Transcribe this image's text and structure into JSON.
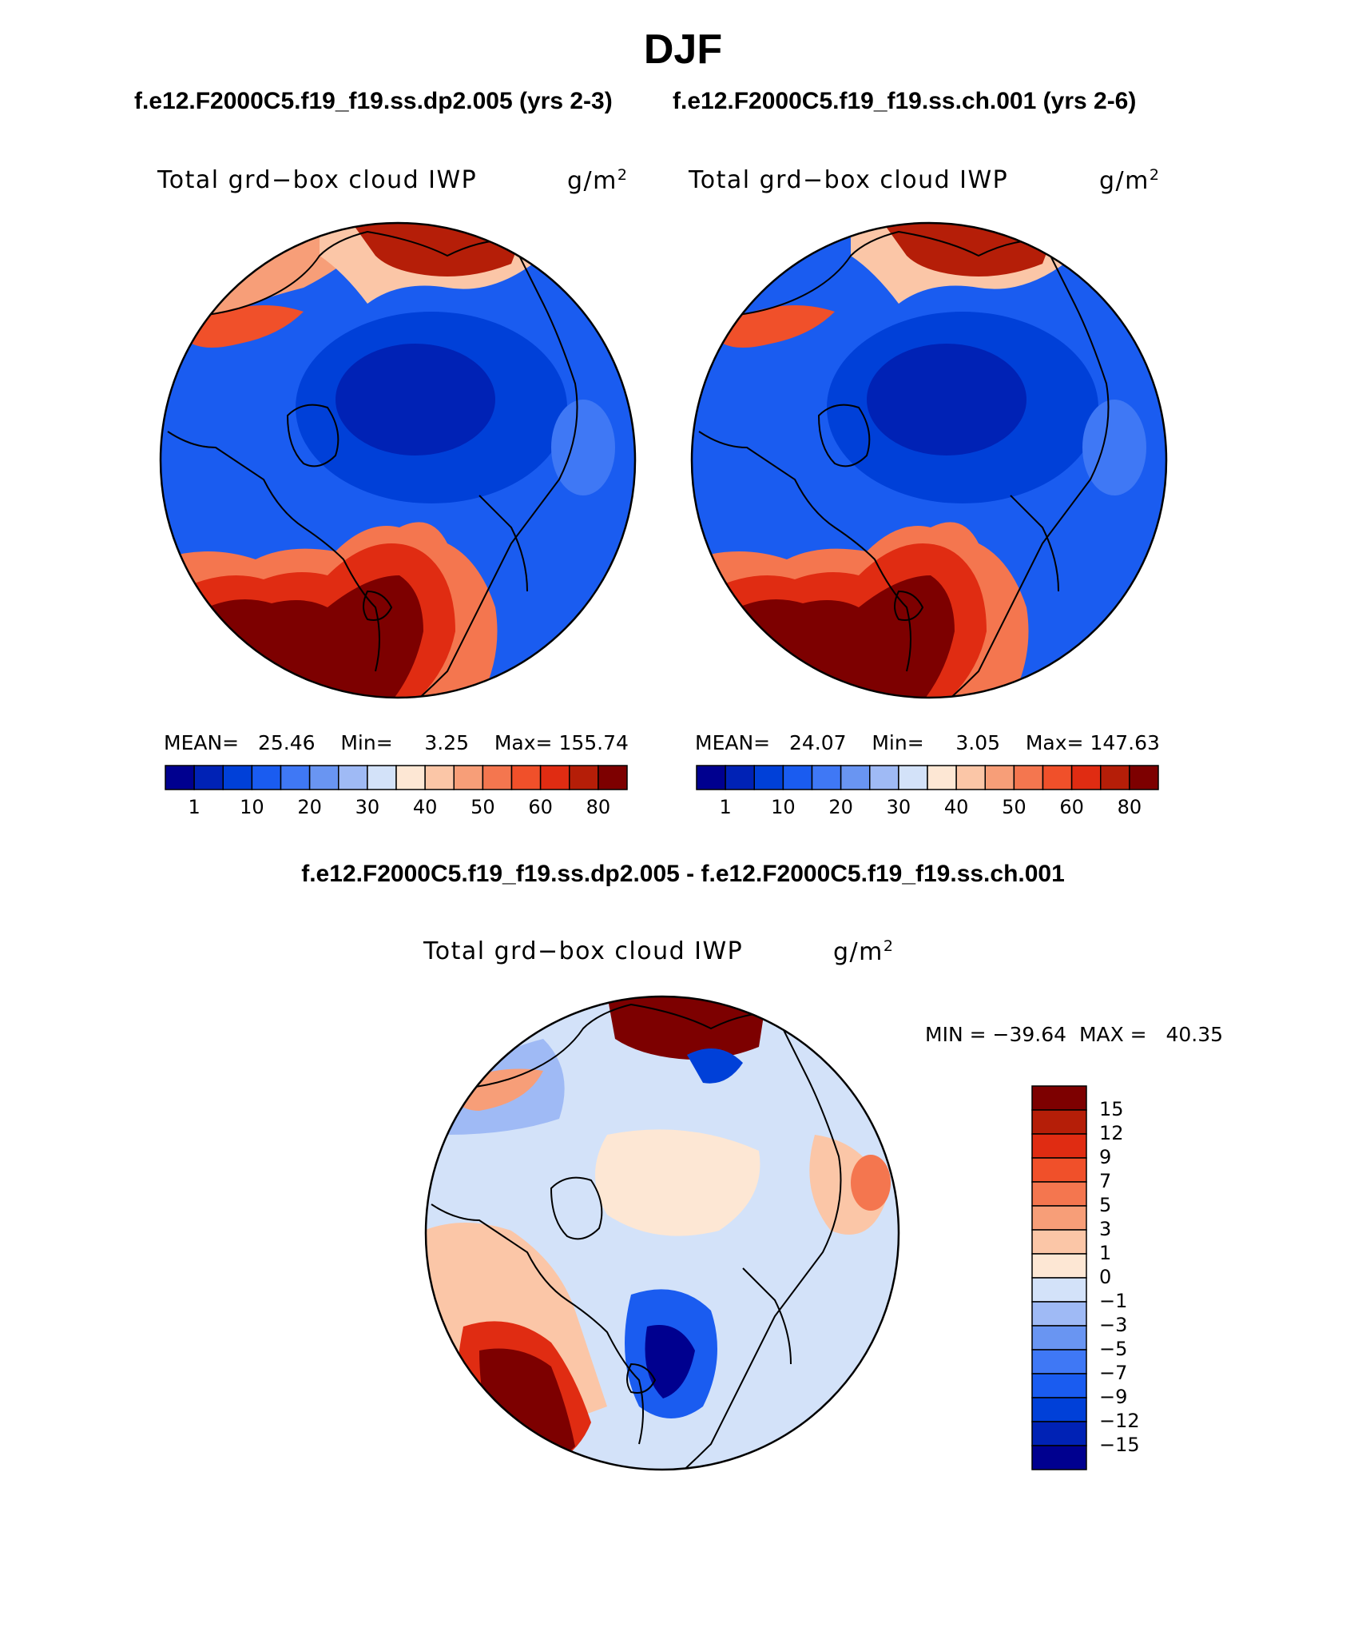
{
  "page": {
    "title": "DJF",
    "case1_label": "f.e12.F2000C5.f19_f19.ss.dp2.005 (yrs 2-3)",
    "case2_label": "f.e12.F2000C5.f19_f19.ss.ch.001 (yrs 2-6)",
    "diff_title": "f.e12.F2000C5.f19_f19.ss.dp2.005 - f.e12.F2000C5.f19_f19.ss.ch.001"
  },
  "panels": [
    {
      "variable": "Total grd−box cloud IWP",
      "units_base": "g/m",
      "units_exp": "2",
      "mean_label": "MEAN=",
      "mean_value": "25.46",
      "min_label": "Min=",
      "min_value": "3.25",
      "max_label": "Max=",
      "max_value": "155.74"
    },
    {
      "variable": "Total grd−box cloud IWP",
      "units_base": "g/m",
      "units_exp": "2",
      "mean_label": "MEAN=",
      "mean_value": "24.07",
      "min_label": "Min=",
      "min_value": "3.05",
      "max_label": "Max=",
      "max_value": "147.63"
    }
  ],
  "diff_panel": {
    "variable": "Total grd−box cloud IWP",
    "units_base": "g/m",
    "units_exp": "2",
    "min_label": "MIN =",
    "min_value": "−39.64",
    "max_label": "MAX =",
    "max_value": "40.35"
  },
  "colorbar_main": {
    "tick_labels": [
      "1",
      "10",
      "20",
      "30",
      "40",
      "50",
      "60",
      "80"
    ],
    "colors": [
      "#00008f",
      "#0022b5",
      "#0040d8",
      "#1a5cf0",
      "#3f78f5",
      "#6995f2",
      "#9fbaf5",
      "#d3e2f9",
      "#fde7d4",
      "#fbc6a7",
      "#f79e78",
      "#f4764f",
      "#f0502a",
      "#e02c12",
      "#b51e08",
      "#7d0000"
    ]
  },
  "colorbar_diff": {
    "tick_labels": [
      "15",
      "12",
      "9",
      "7",
      "5",
      "3",
      "1",
      "0",
      "−1",
      "−3",
      "−5",
      "−7",
      "−9",
      "−12",
      "−15"
    ],
    "colors": [
      "#7d0000",
      "#b51e08",
      "#e02c12",
      "#f0502a",
      "#f4764f",
      "#f79e78",
      "#fbc6a7",
      "#fde7d4",
      "#d3e2f9",
      "#9fbaf5",
      "#6995f2",
      "#3f78f5",
      "#1a5cf0",
      "#0040d8",
      "#0022b5",
      "#00008f"
    ]
  }
}
